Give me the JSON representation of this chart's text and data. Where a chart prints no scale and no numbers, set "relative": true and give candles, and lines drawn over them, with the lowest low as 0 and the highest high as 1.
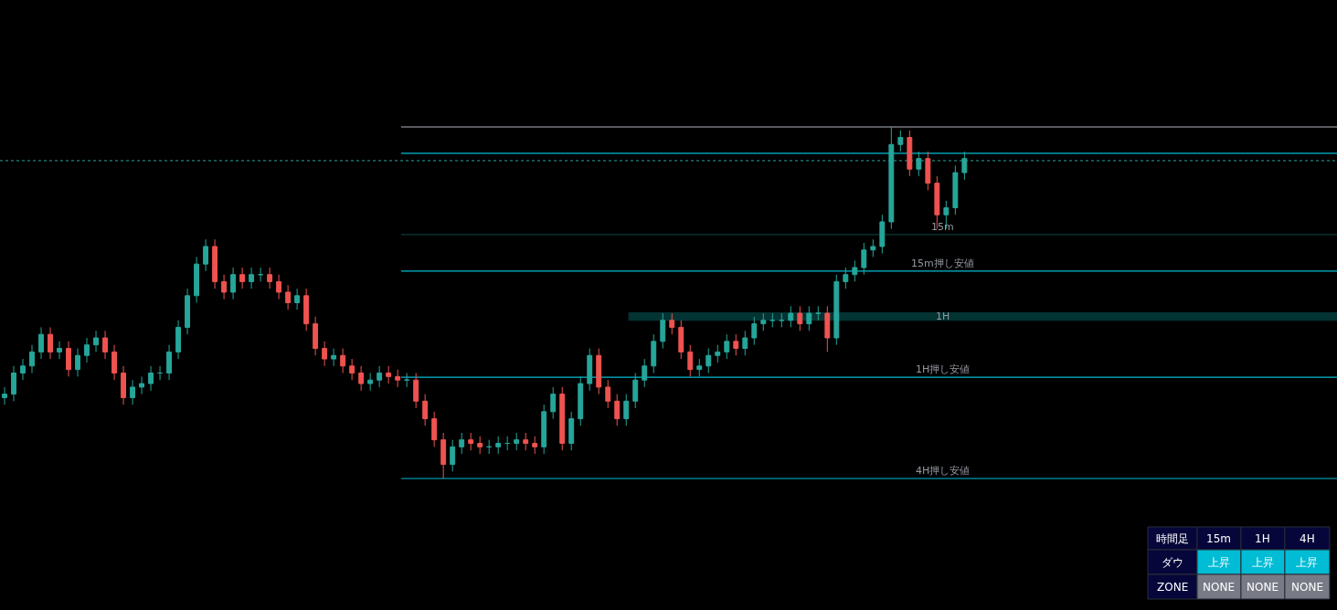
{
  "chart_data": {
    "type": "candlestick",
    "relative": true,
    "legend": false,
    "categories": [
      null,
      null,
      null,
      null,
      null,
      null,
      null,
      null,
      null,
      null,
      null,
      null,
      null,
      null,
      null,
      null,
      null,
      null,
      null,
      null,
      null,
      null,
      null,
      null,
      null,
      null,
      null,
      null,
      null,
      null,
      null,
      null,
      null,
      null,
      null,
      null,
      null,
      null,
      null,
      null,
      null,
      null,
      null,
      null,
      null,
      null,
      null,
      null,
      null,
      null,
      null,
      null,
      null,
      null,
      null,
      null,
      null,
      null,
      null,
      null,
      null,
      null,
      null,
      null,
      null,
      null,
      null,
      null,
      null,
      null,
      null,
      null,
      null,
      null,
      null,
      null,
      null,
      null,
      null,
      null,
      null,
      null,
      null,
      null,
      null,
      null,
      null,
      null,
      null,
      null,
      null,
      null,
      null,
      null,
      null,
      null,
      null,
      null,
      null,
      null,
      null,
      null,
      null,
      null,
      null,
      null
    ],
    "ohlc": [
      [
        0.23,
        0.26,
        0.21,
        0.24
      ],
      [
        0.24,
        0.32,
        0.22,
        0.3
      ],
      [
        0.3,
        0.34,
        0.28,
        0.32
      ],
      [
        0.32,
        0.38,
        0.3,
        0.36
      ],
      [
        0.36,
        0.43,
        0.34,
        0.41
      ],
      [
        0.41,
        0.43,
        0.34,
        0.36
      ],
      [
        0.36,
        0.39,
        0.34,
        0.37
      ],
      [
        0.37,
        0.39,
        0.29,
        0.31
      ],
      [
        0.31,
        0.37,
        0.29,
        0.35
      ],
      [
        0.35,
        0.4,
        0.33,
        0.38
      ],
      [
        0.38,
        0.42,
        0.36,
        0.4
      ],
      [
        0.4,
        0.42,
        0.34,
        0.36
      ],
      [
        0.36,
        0.38,
        0.28,
        0.3
      ],
      [
        0.3,
        0.32,
        0.21,
        0.23
      ],
      [
        0.23,
        0.28,
        0.21,
        0.26
      ],
      [
        0.26,
        0.29,
        0.24,
        0.27
      ],
      [
        0.27,
        0.32,
        0.25,
        0.3
      ],
      [
        0.3,
        0.32,
        0.28,
        0.3
      ],
      [
        0.3,
        0.38,
        0.28,
        0.36
      ],
      [
        0.36,
        0.45,
        0.34,
        0.43
      ],
      [
        0.43,
        0.54,
        0.41,
        0.52
      ],
      [
        0.52,
        0.63,
        0.5,
        0.61
      ],
      [
        0.61,
        0.68,
        0.59,
        0.66
      ],
      [
        0.66,
        0.68,
        0.54,
        0.56
      ],
      [
        0.56,
        0.58,
        0.51,
        0.53
      ],
      [
        0.53,
        0.6,
        0.51,
        0.58
      ],
      [
        0.58,
        0.6,
        0.54,
        0.56
      ],
      [
        0.56,
        0.6,
        0.54,
        0.58
      ],
      [
        0.58,
        0.6,
        0.56,
        0.58
      ],
      [
        0.58,
        0.6,
        0.54,
        0.56
      ],
      [
        0.56,
        0.58,
        0.51,
        0.53
      ],
      [
        0.53,
        0.55,
        0.48,
        0.5
      ],
      [
        0.5,
        0.54,
        0.48,
        0.52
      ],
      [
        0.52,
        0.54,
        0.42,
        0.44
      ],
      [
        0.44,
        0.46,
        0.35,
        0.37
      ],
      [
        0.37,
        0.39,
        0.32,
        0.34
      ],
      [
        0.34,
        0.37,
        0.32,
        0.35
      ],
      [
        0.35,
        0.37,
        0.3,
        0.32
      ],
      [
        0.32,
        0.34,
        0.28,
        0.3
      ],
      [
        0.3,
        0.32,
        0.25,
        0.27
      ],
      [
        0.27,
        0.3,
        0.25,
        0.28
      ],
      [
        0.28,
        0.32,
        0.26,
        0.3
      ],
      [
        0.3,
        0.32,
        0.27,
        0.29
      ],
      [
        0.29,
        0.31,
        0.26,
        0.28
      ],
      [
        0.28,
        0.3,
        0.26,
        0.28
      ],
      [
        0.28,
        0.3,
        0.2,
        0.22
      ],
      [
        0.22,
        0.24,
        0.15,
        0.17
      ],
      [
        0.17,
        0.19,
        0.09,
        0.11
      ],
      [
        0.11,
        0.13,
        0.0,
        0.04
      ],
      [
        0.04,
        0.11,
        0.02,
        0.09
      ],
      [
        0.09,
        0.13,
        0.07,
        0.11
      ],
      [
        0.11,
        0.13,
        0.08,
        0.1
      ],
      [
        0.1,
        0.12,
        0.07,
        0.09
      ],
      [
        0.09,
        0.11,
        0.07,
        0.09
      ],
      [
        0.09,
        0.12,
        0.07,
        0.1
      ],
      [
        0.1,
        0.12,
        0.08,
        0.1
      ],
      [
        0.1,
        0.13,
        0.08,
        0.11
      ],
      [
        0.11,
        0.13,
        0.08,
        0.1
      ],
      [
        0.1,
        0.12,
        0.07,
        0.09
      ],
      [
        0.09,
        0.21,
        0.07,
        0.19
      ],
      [
        0.19,
        0.26,
        0.17,
        0.24
      ],
      [
        0.24,
        0.26,
        0.08,
        0.1
      ],
      [
        0.1,
        0.19,
        0.08,
        0.17
      ],
      [
        0.17,
        0.29,
        0.15,
        0.27
      ],
      [
        0.27,
        0.37,
        0.25,
        0.35
      ],
      [
        0.35,
        0.37,
        0.24,
        0.26
      ],
      [
        0.26,
        0.28,
        0.2,
        0.22
      ],
      [
        0.22,
        0.24,
        0.15,
        0.17
      ],
      [
        0.17,
        0.24,
        0.15,
        0.22
      ],
      [
        0.22,
        0.3,
        0.2,
        0.28
      ],
      [
        0.28,
        0.34,
        0.26,
        0.32
      ],
      [
        0.32,
        0.41,
        0.3,
        0.39
      ],
      [
        0.39,
        0.47,
        0.37,
        0.45
      ],
      [
        0.45,
        0.47,
        0.41,
        0.43
      ],
      [
        0.43,
        0.45,
        0.34,
        0.36
      ],
      [
        0.36,
        0.38,
        0.29,
        0.31
      ],
      [
        0.31,
        0.34,
        0.29,
        0.32
      ],
      [
        0.32,
        0.37,
        0.3,
        0.35
      ],
      [
        0.35,
        0.38,
        0.33,
        0.36
      ],
      [
        0.36,
        0.41,
        0.34,
        0.39
      ],
      [
        0.39,
        0.41,
        0.35,
        0.37
      ],
      [
        0.37,
        0.42,
        0.35,
        0.4
      ],
      [
        0.4,
        0.46,
        0.38,
        0.44
      ],
      [
        0.44,
        0.47,
        0.42,
        0.45
      ],
      [
        0.45,
        0.47,
        0.43,
        0.45
      ],
      [
        0.45,
        0.47,
        0.43,
        0.45
      ],
      [
        0.45,
        0.49,
        0.43,
        0.47
      ],
      [
        0.47,
        0.49,
        0.42,
        0.44
      ],
      [
        0.44,
        0.49,
        0.42,
        0.47
      ],
      [
        0.47,
        0.49,
        0.45,
        0.47
      ],
      [
        0.47,
        0.49,
        0.36,
        0.4
      ],
      [
        0.4,
        0.58,
        0.38,
        0.56
      ],
      [
        0.56,
        0.6,
        0.54,
        0.58
      ],
      [
        0.58,
        0.62,
        0.56,
        0.6
      ],
      [
        0.6,
        0.67,
        0.58,
        0.65
      ],
      [
        0.65,
        0.68,
        0.63,
        0.66
      ],
      [
        0.66,
        0.75,
        0.64,
        0.73
      ],
      [
        0.73,
        1.0,
        0.71,
        0.95
      ],
      [
        0.95,
        0.99,
        0.93,
        0.97
      ],
      [
        0.97,
        0.99,
        0.86,
        0.88
      ],
      [
        0.88,
        0.93,
        0.86,
        0.91
      ],
      [
        0.91,
        0.93,
        0.82,
        0.84
      ],
      [
        0.84,
        0.86,
        0.71,
        0.75
      ],
      [
        0.75,
        0.79,
        0.71,
        0.77
      ],
      [
        0.77,
        0.89,
        0.75,
        0.87
      ],
      [
        0.87,
        0.93,
        0.85,
        0.91
      ]
    ],
    "colors": [
      "#26a69a",
      "#26a69a",
      "#26a69a",
      "#26a69a",
      "#26a69a",
      "#ef5350",
      "#26a69a",
      "#ef5350",
      "#26a69a",
      "#26a69a",
      "#26a69a",
      "#ef5350",
      "#ef5350",
      "#ef5350",
      "#26a69a",
      "#26a69a",
      "#26a69a",
      "#26a69a",
      "#26a69a",
      "#26a69a",
      "#26a69a",
      "#26a69a",
      "#26a69a",
      "#ef5350",
      "#ef5350",
      "#26a69a",
      "#ef5350",
      "#26a69a",
      "#26a69a",
      "#ef5350",
      "#ef5350",
      "#ef5350",
      "#26a69a",
      "#ef5350",
      "#ef5350",
      "#ef5350",
      "#26a69a",
      "#ef5350",
      "#ef5350",
      "#ef5350",
      "#26a69a",
      "#26a69a",
      "#ef5350",
      "#ef5350",
      "#26a69a",
      "#ef5350",
      "#ef5350",
      "#ef5350",
      "#ef5350",
      "#26a69a",
      "#26a69a",
      "#ef5350",
      "#ef5350",
      "#26a69a",
      "#26a69a",
      "#26a69a",
      "#26a69a",
      "#ef5350",
      "#ef5350",
      "#26a69a",
      "#26a69a",
      "#ef5350",
      "#26a69a",
      "#26a69a",
      "#26a69a",
      "#ef5350",
      "#ef5350",
      "#ef5350",
      "#26a69a",
      "#26a69a",
      "#26a69a",
      "#26a69a",
      "#26a69a",
      "#ef5350",
      "#ef5350",
      "#ef5350",
      "#26a69a",
      "#26a69a",
      "#26a69a",
      "#26a69a",
      "#ef5350",
      "#26a69a",
      "#26a69a",
      "#26a69a",
      "#26a69a",
      "#26a69a",
      "#26a69a",
      "#ef5350",
      "#26a69a",
      "#26a69a",
      "#ef5350",
      "#26a69a",
      "#26a69a",
      "#26a69a",
      "#26a69a",
      "#26a69a",
      "#26a69a",
      "#26a69a",
      "#26a69a",
      "#ef5350",
      "#26a69a",
      "#ef5350",
      "#ef5350",
      "#26a69a",
      "#26a69a",
      "#26a69a"
    ],
    "ref_lines": [
      {
        "axis": "y",
        "value": 1.0,
        "label": null,
        "color": "#b2b5be"
      },
      {
        "axis": "y",
        "value": 0.925,
        "label": null,
        "color": "#00bcd4"
      },
      {
        "axis": "y",
        "value": 0.904,
        "label": null,
        "color": "#26a69a",
        "line_style": "dotted"
      },
      {
        "axis": "y",
        "value": 0.694,
        "label": "15m",
        "color": "#0b3b3b"
      },
      {
        "axis": "y",
        "value": 0.59,
        "label": "15m押し安値",
        "color": "#00bcd4"
      },
      {
        "axis": "y",
        "value": 0.288,
        "label": "1H押し安値",
        "color": "#00bcd4"
      },
      {
        "axis": "y",
        "value": 0.0,
        "label": "4H押し安値",
        "color": "#00bcd4"
      }
    ],
    "bands": [
      {
        "axis": "y",
        "from": 0.449,
        "to": 0.473,
        "label": "1H",
        "color": "#033333"
      }
    ],
    "annotations": [
      "時間足",
      "15m",
      "1H",
      "4H",
      "ダウ",
      "上昇",
      "上昇",
      "上昇",
      "ZONE",
      "NONE",
      "NONE",
      "NONE"
    ]
  }
}
